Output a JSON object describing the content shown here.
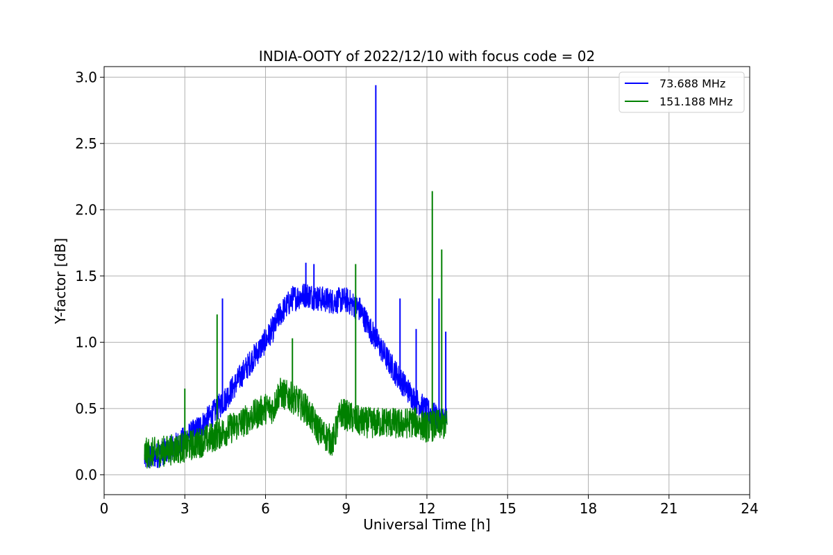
{
  "chart_data": {
    "type": "line",
    "title": "INDIA-OOTY of 2022/12/10 with focus code = 02",
    "xlabel": "Universal Time [h]",
    "ylabel": "Y-factor [dB]",
    "xlim": [
      0,
      24
    ],
    "ylim": [
      -0.15,
      3.08
    ],
    "xticks": [
      0,
      3,
      6,
      9,
      12,
      15,
      18,
      21,
      24
    ],
    "xtick_labels": [
      "0",
      "3",
      "6",
      "9",
      "12",
      "15",
      "18",
      "21",
      "24"
    ],
    "yticks": [
      0.0,
      0.5,
      1.0,
      1.5,
      2.0,
      2.5,
      3.0
    ],
    "ytick_labels": [
      "0.0",
      "0.5",
      "1.0",
      "1.5",
      "2.0",
      "2.5",
      "3.0"
    ],
    "grid": true,
    "legend_position": "top-right",
    "series": [
      {
        "name": " 73.688 MHz",
        "color": "#0000ff",
        "band_width": 0.1,
        "x": [
          1.5,
          2.0,
          2.5,
          3.0,
          3.5,
          4.0,
          4.5,
          5.0,
          5.5,
          6.0,
          6.2,
          6.3,
          6.5,
          7.0,
          7.5,
          8.0,
          8.5,
          9.0,
          9.5,
          10.0,
          10.5,
          11.0,
          11.5,
          12.0,
          12.5,
          12.75
        ],
        "y": [
          0.12,
          0.15,
          0.2,
          0.27,
          0.35,
          0.45,
          0.57,
          0.72,
          0.87,
          1.01,
          1.08,
          1.1,
          1.2,
          1.33,
          1.36,
          1.33,
          1.31,
          1.32,
          1.25,
          1.06,
          0.88,
          0.72,
          0.58,
          0.48,
          0.42,
          0.42
        ],
        "spikes": [
          [
            4.4,
            1.33
          ],
          [
            7.5,
            1.6
          ],
          [
            7.8,
            1.59
          ],
          [
            10.1,
            2.94
          ],
          [
            11.0,
            1.33
          ],
          [
            11.6,
            1.1
          ],
          [
            12.45,
            1.33
          ],
          [
            12.7,
            1.08
          ]
        ]
      },
      {
        "name": "151.188 MHz",
        "color": "#008000",
        "band_width": 0.12,
        "x": [
          1.5,
          2.0,
          2.5,
          3.0,
          3.5,
          4.0,
          4.5,
          5.0,
          5.5,
          6.0,
          6.3,
          6.5,
          7.0,
          7.5,
          8.0,
          8.5,
          8.8,
          9.0,
          9.5,
          10.0,
          10.5,
          11.0,
          11.5,
          12.0,
          12.5,
          12.75
        ],
        "y": [
          0.16,
          0.17,
          0.19,
          0.21,
          0.24,
          0.28,
          0.33,
          0.38,
          0.44,
          0.5,
          0.5,
          0.62,
          0.58,
          0.5,
          0.33,
          0.25,
          0.47,
          0.45,
          0.4,
          0.39,
          0.4,
          0.38,
          0.4,
          0.36,
          0.38,
          0.38
        ],
        "spikes": [
          [
            3.0,
            0.65
          ],
          [
            4.2,
            1.21
          ],
          [
            7.0,
            1.03
          ],
          [
            9.35,
            1.59
          ],
          [
            12.2,
            2.14
          ],
          [
            12.55,
            1.7
          ]
        ]
      }
    ]
  }
}
